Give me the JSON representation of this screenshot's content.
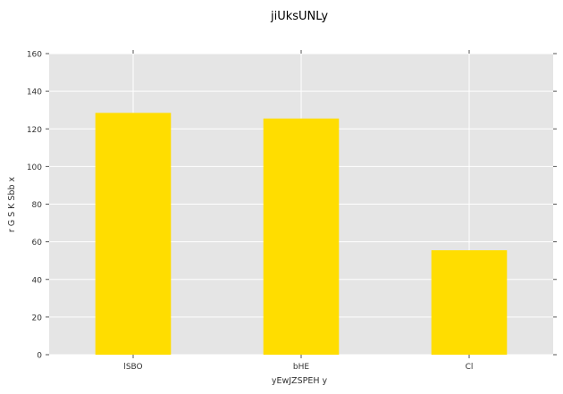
{
  "chart_data": {
    "type": "bar",
    "title": "jiUksUNLy",
    "xlabel": "yEwJZSPEH y",
    "ylabel": "r G S K Sbb x",
    "categories": [
      "lSBO",
      "bHE",
      "Cl"
    ],
    "values": [
      128.5,
      125.5,
      55.5
    ],
    "ylim": [
      0,
      160
    ],
    "yticks": [
      0,
      20,
      40,
      60,
      80,
      100,
      120,
      140,
      160
    ],
    "ytick_labels": [
      "0",
      "20",
      "40",
      "60",
      "80",
      "100",
      "120",
      "140",
      "160"
    ],
    "grid": true,
    "bar_color": "#FFDD00",
    "plot_background": "#E5E5E5",
    "grid_color": "#FFFFFF"
  }
}
